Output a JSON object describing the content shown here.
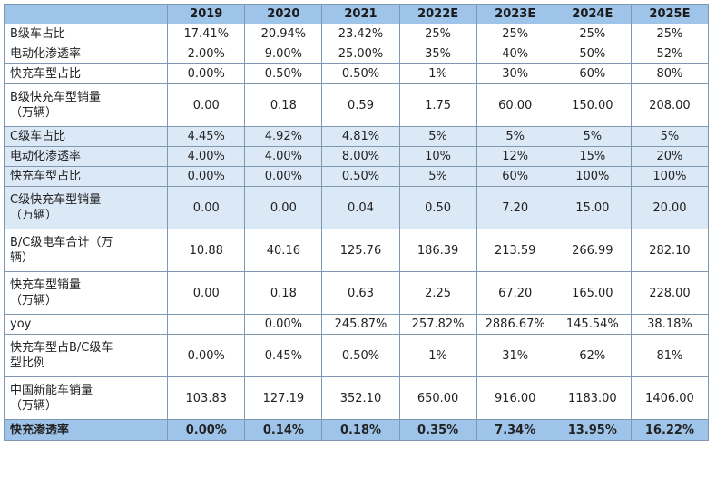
{
  "table": {
    "headers": [
      "",
      "2019",
      "2020",
      "2021",
      "2022E",
      "2023E",
      "2024E",
      "2025E"
    ],
    "rows": [
      {
        "label": "B级车占比",
        "values": [
          "17.41%",
          "20.94%",
          "23.42%",
          "25%",
          "25%",
          "25%",
          "25%"
        ],
        "band": false
      },
      {
        "label": "电动化渗透率",
        "values": [
          "2.00%",
          "9.00%",
          "25.00%",
          "35%",
          "40%",
          "50%",
          "52%"
        ],
        "band": false
      },
      {
        "label": "快充车型占比",
        "values": [
          "0.00%",
          "0.50%",
          "0.50%",
          "1%",
          "30%",
          "60%",
          "80%"
        ],
        "band": false
      },
      {
        "label": "B级快充车型销量\n（万辆）",
        "values": [
          "0.00",
          "0.18",
          "0.59",
          "1.75",
          "60.00",
          "150.00",
          "208.00"
        ],
        "band": false
      },
      {
        "label": "C级车占比",
        "values": [
          "4.45%",
          "4.92%",
          "4.81%",
          "5%",
          "5%",
          "5%",
          "5%"
        ],
        "band": true
      },
      {
        "label": "电动化渗透率",
        "values": [
          "4.00%",
          "4.00%",
          "8.00%",
          "10%",
          "12%",
          "15%",
          "20%"
        ],
        "band": true
      },
      {
        "label": "快充车型占比",
        "values": [
          "0.00%",
          "0.00%",
          "0.50%",
          "5%",
          "60%",
          "100%",
          "100%"
        ],
        "band": true
      },
      {
        "label": "C级快充车型销量\n（万辆）",
        "values": [
          "0.00",
          "0.00",
          "0.04",
          "0.50",
          "7.20",
          "15.00",
          "20.00"
        ],
        "band": true
      },
      {
        "label": "B/C级电车合计（万\n辆）",
        "values": [
          "10.88",
          "40.16",
          "125.76",
          "186.39",
          "213.59",
          "266.99",
          "282.10"
        ],
        "band": false
      },
      {
        "label": "快充车型销量\n（万辆）",
        "values": [
          "0.00",
          "0.18",
          "0.63",
          "2.25",
          "67.20",
          "165.00",
          "228.00"
        ],
        "band": false
      },
      {
        "label": "yoy",
        "values": [
          "",
          "0.00%",
          "245.87%",
          "257.82%",
          "2886.67%",
          "145.54%",
          "38.18%"
        ],
        "band": false
      },
      {
        "label": "快充车型占B/C级车\n型比例",
        "values": [
          "0.00%",
          "0.45%",
          "0.50%",
          "1%",
          "31%",
          "62%",
          "81%"
        ],
        "band": false
      },
      {
        "label": "中国新能车销量\n（万辆）",
        "values": [
          "103.83",
          "127.19",
          "352.10",
          "650.00",
          "916.00",
          "1183.00",
          "1406.00"
        ],
        "band": false
      }
    ],
    "footer": {
      "label": "快充渗透率",
      "values": [
        "0.00%",
        "0.14%",
        "0.18%",
        "0.35%",
        "7.34%",
        "13.95%",
        "16.22%"
      ]
    }
  }
}
